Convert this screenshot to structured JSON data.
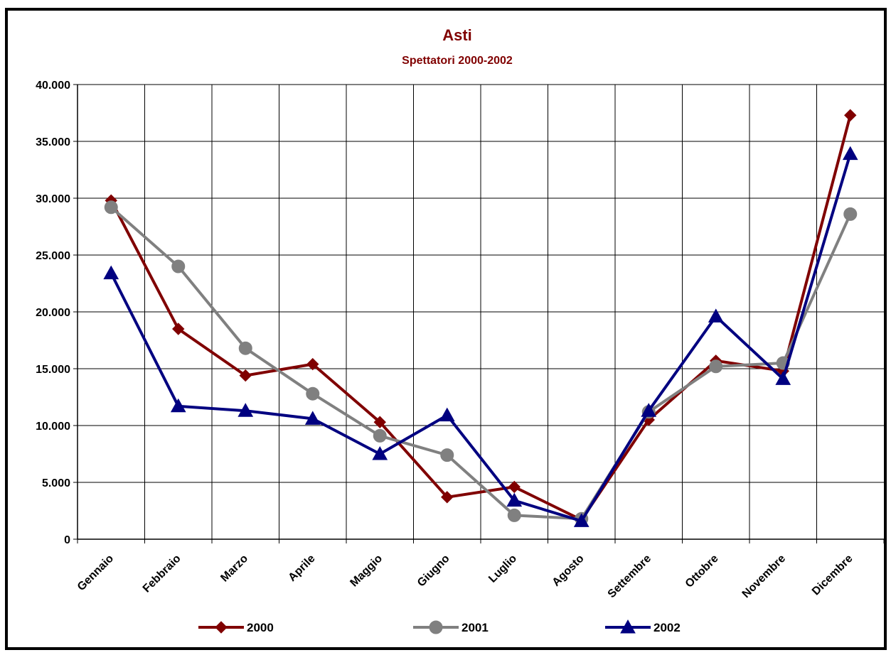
{
  "chart_data": {
    "type": "line",
    "title": "Asti",
    "subtitle": "Spettatori 2000-2002",
    "xlabel": "",
    "ylabel": "",
    "categories": [
      "Gennaio",
      "Febbraio",
      "Marzo",
      "Aprile",
      "Maggio",
      "Giugno",
      "Luglio",
      "Agosto",
      "Settembre",
      "Ottobre",
      "Novembre",
      "Dicembre"
    ],
    "ylim": [
      0,
      40000
    ],
    "yticks": [
      0,
      5000,
      10000,
      15000,
      20000,
      25000,
      30000,
      35000,
      40000
    ],
    "ytick_labels": [
      "0",
      "5.000",
      "10.000",
      "15.000",
      "20.000",
      "25.000",
      "30.000",
      "35.000",
      "40.000"
    ],
    "grid": true,
    "legend_position": "bottom",
    "series": [
      {
        "name": "2000",
        "color": "#800000",
        "marker": "diamond",
        "values": [
          29800,
          18500,
          14400,
          15400,
          10300,
          3700,
          4600,
          1700,
          10500,
          15700,
          14800,
          37300
        ]
      },
      {
        "name": "2001",
        "color": "#808080",
        "marker": "circle",
        "values": [
          29200,
          24000,
          16800,
          12800,
          9100,
          7400,
          2100,
          1800,
          11200,
          15200,
          15500,
          28600
        ]
      },
      {
        "name": "2002",
        "color": "#000080",
        "marker": "triangle",
        "values": [
          23400,
          11700,
          11300,
          10600,
          7500,
          10900,
          3400,
          1600,
          11300,
          19600,
          14100,
          33900
        ]
      }
    ]
  }
}
